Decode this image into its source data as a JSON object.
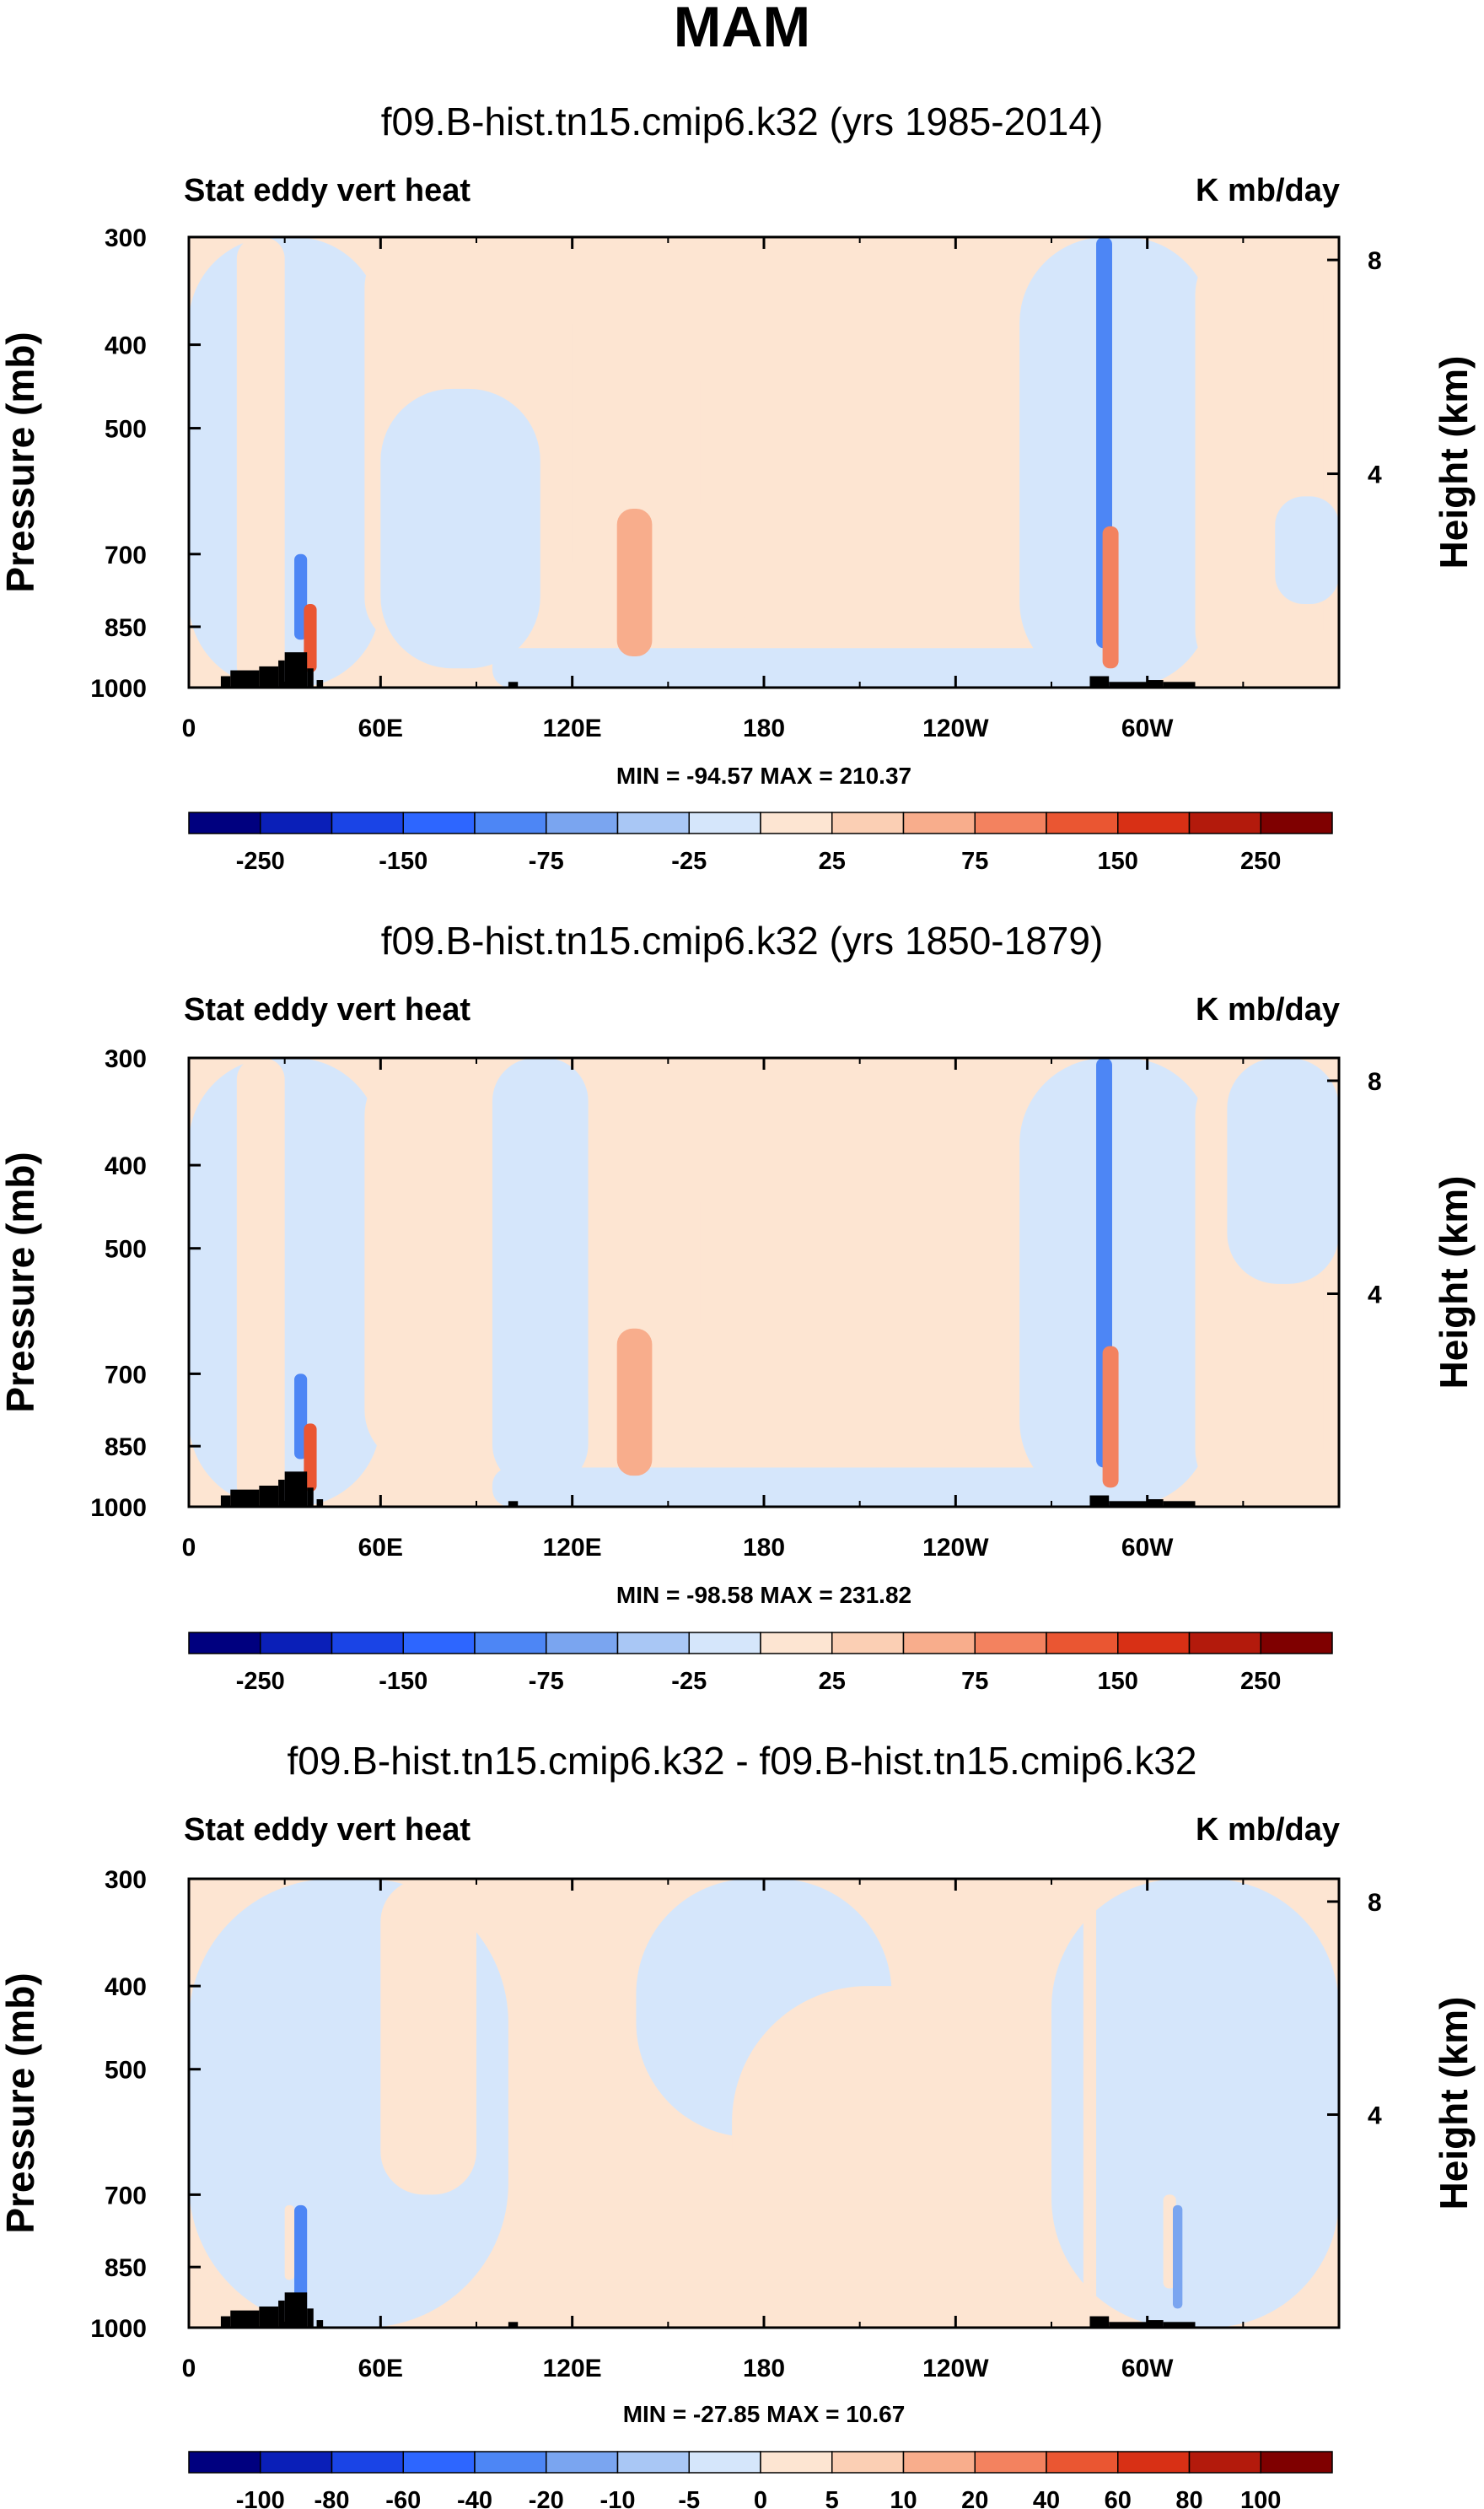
{
  "figure_title": "MAM",
  "colors": {
    "neg": [
      "#00007f",
      "#0a1fb8",
      "#1a44e6",
      "#2d66ff",
      "#4d86f5",
      "#7aa5f0",
      "#a9c7f5",
      "#d5e6fb"
    ],
    "pos": [
      "#fde5d2",
      "#fbcfb4",
      "#f8ad8c",
      "#f3825f",
      "#ea5632",
      "#d83015",
      "#b31a0c",
      "#7f0000"
    ],
    "land": "#000000"
  },
  "chart_data": [
    {
      "type": "heatmap",
      "panel_title": "f09.B-hist.tn15.cmip6.k32 (yrs 1985-2014)",
      "left_label": "Stat eddy vert heat",
      "right_label": "K mb/day",
      "ylabel": "Pressure (mb)",
      "ylabel_right": "Height (km)",
      "xticks": [
        "0",
        "60E",
        "120E",
        "180",
        "120W",
        "60W"
      ],
      "xtick_lon": [
        0,
        60,
        120,
        180,
        240,
        300
      ],
      "yticks": [
        "300",
        "400",
        "500",
        "700",
        "850",
        "1000"
      ],
      "ytick_p": [
        300,
        400,
        500,
        700,
        850,
        1000
      ],
      "yticks_right": [
        "8",
        "4"
      ],
      "ytick_right_km": [
        8,
        4
      ],
      "min_max": "MIN = -94.57  MAX = 210.37",
      "min": -94.57,
      "max": 210.37,
      "colorbar_labels": [
        "-250",
        "-150",
        "-75",
        "-25",
        "25",
        "75",
        "150",
        "250"
      ],
      "colorbar_label_bounds": [
        1,
        3,
        5,
        7,
        9,
        11,
        13,
        15
      ],
      "features": [
        {
          "kind": "neg",
          "lon0": 0,
          "lon1": 60,
          "p0": 300,
          "p1": 1000
        },
        {
          "kind": "pos",
          "lon0": 15,
          "lon1": 30,
          "p0": 300,
          "p1": 1000
        },
        {
          "kind": "pos",
          "lon0": 55,
          "lon1": 90,
          "p0": 300,
          "p1": 900
        },
        {
          "kind": "neg",
          "lon0": 60,
          "lon1": 110,
          "p0": 450,
          "p1": 950
        },
        {
          "kind": "pos",
          "lon0": 120,
          "lon1": 180,
          "p0": 300,
          "p1": 900
        },
        {
          "kind": "pos",
          "lon0": 160,
          "lon1": 260,
          "p0": 300,
          "p1": 900
        },
        {
          "kind": "neg",
          "lon0": 95,
          "lon1": 290,
          "p0": 900,
          "p1": 1000
        },
        {
          "kind": "neg",
          "lon0": 260,
          "lon1": 320,
          "p0": 300,
          "p1": 1000
        },
        {
          "kind": "pos",
          "lon0": 315,
          "lon1": 355,
          "p0": 300,
          "p1": 1000
        },
        {
          "kind": "neg",
          "lon0": 340,
          "lon1": 360,
          "p0": 600,
          "p1": 800
        },
        {
          "kind": "neg",
          "lon0": 284,
          "lon1": 289,
          "p0": 300,
          "p1": 900,
          "level": 3
        },
        {
          "kind": "pos",
          "lon0": 286,
          "lon1": 291,
          "p0": 650,
          "p1": 950,
          "level": 3
        },
        {
          "kind": "neg",
          "lon0": 33,
          "lon1": 37,
          "p0": 700,
          "p1": 880,
          "level": 3
        },
        {
          "kind": "pos",
          "lon0": 36,
          "lon1": 40,
          "p0": 800,
          "p1": 960,
          "level": 4
        },
        {
          "kind": "pos",
          "lon0": 134,
          "lon1": 145,
          "p0": 620,
          "p1": 920,
          "level": 2
        }
      ],
      "land": [
        [
          10,
          13,
          970
        ],
        [
          13,
          22,
          955
        ],
        [
          22,
          28,
          945
        ],
        [
          28,
          30,
          930
        ],
        [
          30,
          37,
          910
        ],
        [
          37,
          39,
          950
        ],
        [
          40,
          42,
          980
        ],
        [
          100,
          103,
          985
        ],
        [
          282,
          288,
          970
        ],
        [
          288,
          300,
          985
        ],
        [
          300,
          305,
          980
        ],
        [
          305,
          315,
          985
        ]
      ]
    },
    {
      "type": "heatmap",
      "panel_title": "f09.B-hist.tn15.cmip6.k32 (yrs 1850-1879)",
      "left_label": "Stat eddy vert heat",
      "right_label": "K mb/day",
      "ylabel": "Pressure (mb)",
      "ylabel_right": "Height (km)",
      "xticks": [
        "0",
        "60E",
        "120E",
        "180",
        "120W",
        "60W"
      ],
      "xtick_lon": [
        0,
        60,
        120,
        180,
        240,
        300
      ],
      "yticks": [
        "300",
        "400",
        "500",
        "700",
        "850",
        "1000"
      ],
      "ytick_p": [
        300,
        400,
        500,
        700,
        850,
        1000
      ],
      "yticks_right": [
        "8",
        "4"
      ],
      "ytick_right_km": [
        8,
        4
      ],
      "min_max": "MIN = -98.58  MAX = 231.82",
      "min": -98.58,
      "max": 231.82,
      "colorbar_labels": [
        "-250",
        "-150",
        "-75",
        "-25",
        "25",
        "75",
        "150",
        "250"
      ],
      "colorbar_label_bounds": [
        1,
        3,
        5,
        7,
        9,
        11,
        13,
        15
      ],
      "features": [
        {
          "kind": "neg",
          "lon0": 0,
          "lon1": 60,
          "p0": 300,
          "p1": 1000
        },
        {
          "kind": "pos",
          "lon0": 15,
          "lon1": 30,
          "p0": 300,
          "p1": 1000
        },
        {
          "kind": "pos",
          "lon0": 55,
          "lon1": 95,
          "p0": 300,
          "p1": 900
        },
        {
          "kind": "neg",
          "lon0": 95,
          "lon1": 125,
          "p0": 300,
          "p1": 950
        },
        {
          "kind": "pos",
          "lon0": 125,
          "lon1": 180,
          "p0": 300,
          "p1": 900
        },
        {
          "kind": "pos",
          "lon0": 160,
          "lon1": 260,
          "p0": 300,
          "p1": 900
        },
        {
          "kind": "neg",
          "lon0": 95,
          "lon1": 290,
          "p0": 900,
          "p1": 1000
        },
        {
          "kind": "neg",
          "lon0": 260,
          "lon1": 320,
          "p0": 300,
          "p1": 1000
        },
        {
          "kind": "pos",
          "lon0": 315,
          "lon1": 355,
          "p0": 300,
          "p1": 1000
        },
        {
          "kind": "neg",
          "lon0": 325,
          "lon1": 360,
          "p0": 300,
          "p1": 550
        },
        {
          "kind": "neg",
          "lon0": 284,
          "lon1": 289,
          "p0": 300,
          "p1": 900,
          "level": 3
        },
        {
          "kind": "pos",
          "lon0": 286,
          "lon1": 291,
          "p0": 650,
          "p1": 950,
          "level": 3
        },
        {
          "kind": "neg",
          "lon0": 33,
          "lon1": 37,
          "p0": 700,
          "p1": 880,
          "level": 3
        },
        {
          "kind": "pos",
          "lon0": 36,
          "lon1": 40,
          "p0": 800,
          "p1": 960,
          "level": 4
        },
        {
          "kind": "pos",
          "lon0": 134,
          "lon1": 145,
          "p0": 620,
          "p1": 920,
          "level": 2
        }
      ],
      "land": [
        [
          10,
          13,
          970
        ],
        [
          13,
          22,
          955
        ],
        [
          22,
          28,
          945
        ],
        [
          28,
          30,
          930
        ],
        [
          30,
          37,
          910
        ],
        [
          37,
          39,
          950
        ],
        [
          40,
          42,
          980
        ],
        [
          100,
          103,
          985
        ],
        [
          282,
          288,
          970
        ],
        [
          288,
          300,
          985
        ],
        [
          300,
          305,
          980
        ],
        [
          305,
          315,
          985
        ]
      ]
    },
    {
      "type": "heatmap",
      "panel_title": "f09.B-hist.tn15.cmip6.k32 - f09.B-hist.tn15.cmip6.k32",
      "left_label": "Stat eddy vert heat",
      "right_label": "K mb/day",
      "ylabel": "Pressure (mb)",
      "ylabel_right": "Height (km)",
      "xticks": [
        "0",
        "60E",
        "120E",
        "180",
        "120W",
        "60W"
      ],
      "xtick_lon": [
        0,
        60,
        120,
        180,
        240,
        300
      ],
      "yticks": [
        "300",
        "400",
        "500",
        "700",
        "850",
        "1000"
      ],
      "ytick_p": [
        300,
        400,
        500,
        700,
        850,
        1000
      ],
      "yticks_right": [
        "8",
        "4"
      ],
      "ytick_right_km": [
        8,
        4
      ],
      "min_max": "MIN = -27.85  MAX = 10.67",
      "min": -27.85,
      "max": 10.67,
      "colorbar_labels": [
        "-100",
        "-80",
        "-60",
        "-40",
        "-20",
        "-10",
        "-5",
        "0",
        "5",
        "10",
        "20",
        "40",
        "60",
        "80",
        "100"
      ],
      "colorbar_label_bounds": [
        1,
        2,
        3,
        4,
        5,
        6,
        7,
        8,
        9,
        10,
        11,
        12,
        13,
        14,
        15
      ],
      "features": [
        {
          "kind": "neg",
          "lon0": 0,
          "lon1": 100,
          "p0": 300,
          "p1": 1000
        },
        {
          "kind": "pos",
          "lon0": 60,
          "lon1": 90,
          "p0": 300,
          "p1": 700
        },
        {
          "kind": "neg",
          "lon0": 140,
          "lon1": 220,
          "p0": 300,
          "p1": 600
        },
        {
          "kind": "pos",
          "lon0": 170,
          "lon1": 270,
          "p0": 400,
          "p1": 900
        },
        {
          "kind": "neg",
          "lon0": 270,
          "lon1": 360,
          "p0": 300,
          "p1": 1000
        },
        {
          "kind": "pos",
          "lon0": 280,
          "lon1": 284,
          "p0": 300,
          "p1": 1000
        },
        {
          "kind": "neg",
          "lon0": 33,
          "lon1": 37,
          "p0": 720,
          "p1": 960,
          "level": 3
        },
        {
          "kind": "pos",
          "lon0": 30,
          "lon1": 33,
          "p0": 720,
          "p1": 880
        },
        {
          "kind": "pos",
          "lon0": 305,
          "lon1": 309,
          "p0": 700,
          "p1": 900
        },
        {
          "kind": "neg",
          "lon0": 308,
          "lon1": 311,
          "p0": 720,
          "p1": 950,
          "level": 2
        }
      ],
      "land": [
        [
          10,
          13,
          970
        ],
        [
          13,
          22,
          955
        ],
        [
          22,
          28,
          945
        ],
        [
          28,
          30,
          930
        ],
        [
          30,
          37,
          910
        ],
        [
          37,
          39,
          950
        ],
        [
          40,
          42,
          980
        ],
        [
          100,
          103,
          985
        ],
        [
          282,
          288,
          970
        ],
        [
          288,
          300,
          985
        ],
        [
          300,
          305,
          980
        ],
        [
          305,
          315,
          985
        ]
      ]
    }
  ]
}
